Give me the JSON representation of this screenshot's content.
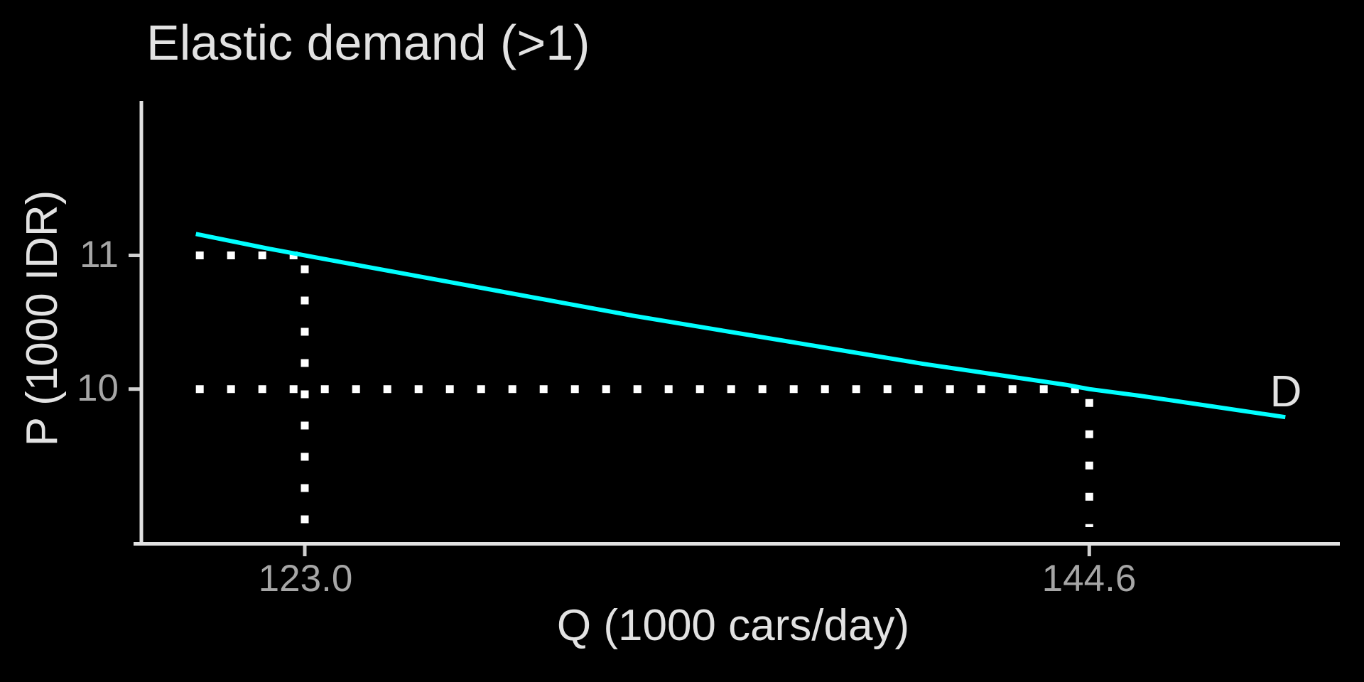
{
  "chart_data": {
    "type": "line",
    "title": "Elastic demand (>1)",
    "xlabel": "Q (1000 cars/day)",
    "ylabel": "P (1000 IDR)",
    "x_ticks": [
      123.0,
      144.6
    ],
    "x_tick_labels": [
      "123.0",
      "144.6"
    ],
    "y_ticks": [
      11,
      10
    ],
    "y_tick_labels": [
      "11",
      "10"
    ],
    "xlim": [
      118.5,
      151.5
    ],
    "ylim": [
      8.84,
      12.15
    ],
    "grid": false,
    "legend_position": "inline-label-at-curve-end",
    "background": "#000000",
    "guide_color": "#FFFFFF",
    "guide_style": "dotted",
    "series": [
      {
        "name": "D",
        "color": "#00FFFF",
        "x": [
          120,
          122,
          124,
          126,
          128,
          130,
          132,
          134,
          136,
          138,
          140,
          142,
          144,
          144.6,
          146,
          148,
          150
        ],
        "y": [
          11.16,
          11.05,
          10.95,
          10.85,
          10.75,
          10.65,
          10.55,
          10.46,
          10.37,
          10.28,
          10.19,
          10.11,
          10.03,
          10.0,
          9.95,
          9.87,
          9.79
        ]
      }
    ],
    "marked_points": [
      {
        "x": 123.0,
        "y": 11
      },
      {
        "x": 144.6,
        "y": 10
      }
    ]
  },
  "colors": {
    "background": "#000000",
    "title_text": "#E2E2E2",
    "axis_label_text": "#E2E2E2",
    "tick_label_text": "#A6A6A6",
    "axis_line": "#E2E2E2",
    "tick_mark": "#CFCFCF",
    "curve": "#00FFFF",
    "guide": "#FFFFFF"
  }
}
